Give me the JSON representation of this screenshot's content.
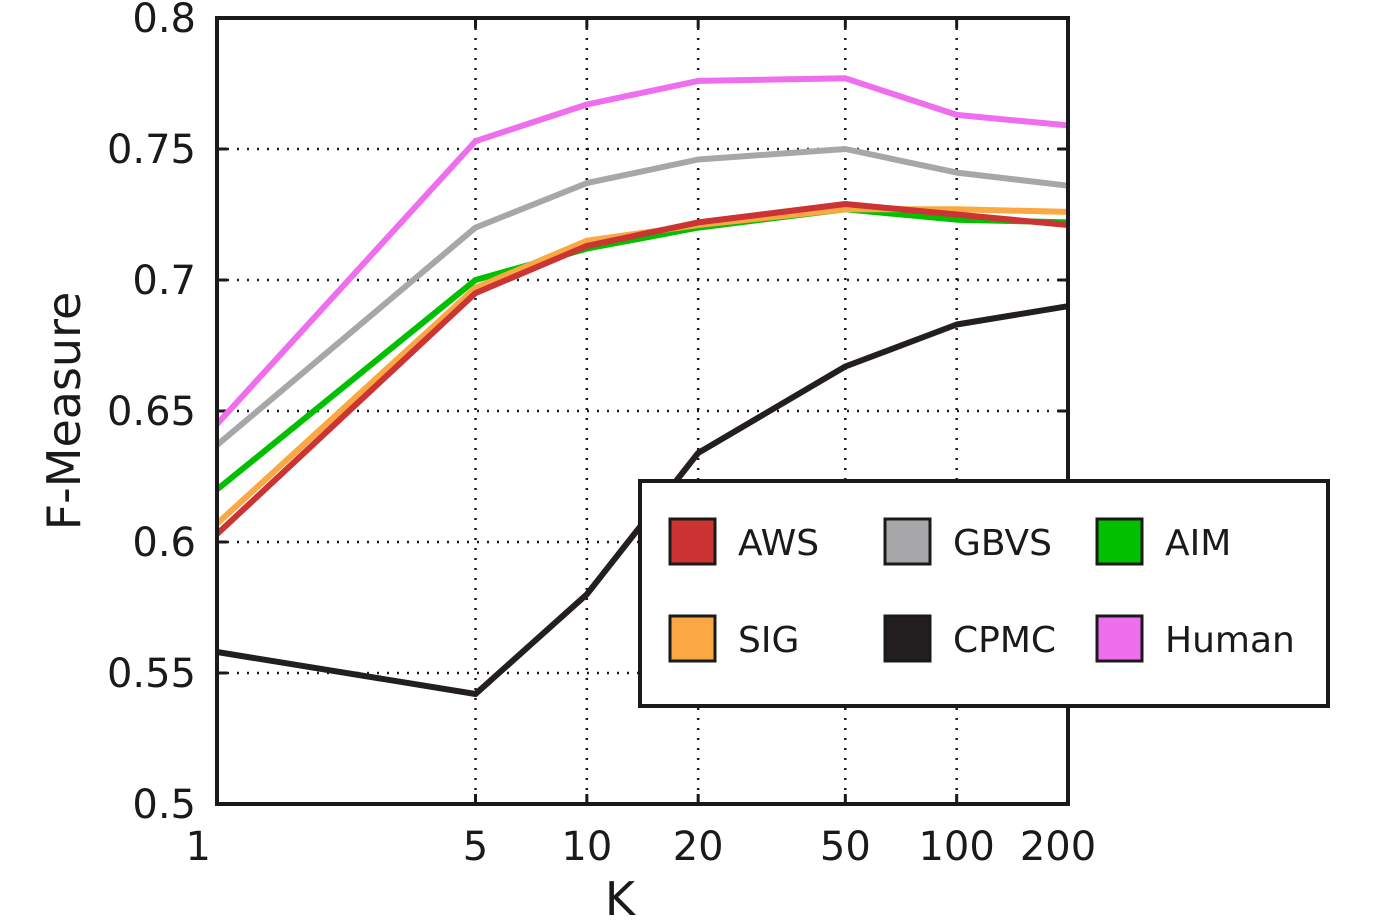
{
  "chart_data": {
    "type": "line",
    "xlabel": "K",
    "ylabel": "F-Measure",
    "x_scale": "log",
    "x": [
      1,
      5,
      10,
      20,
      50,
      100,
      200
    ],
    "xticks": [
      "1",
      "5",
      "10",
      "20",
      "50",
      "100",
      "200"
    ],
    "ylim": [
      0.5,
      0.8
    ],
    "yticks": [
      "0.5",
      "0.55",
      "0.6",
      "0.65",
      "0.7",
      "0.75",
      "0.8"
    ],
    "grid": true,
    "legend_position": "lower-right",
    "series": [
      {
        "name": "AWS",
        "color": "#cc3333",
        "values": [
          0.603,
          0.695,
          0.713,
          0.722,
          0.729,
          0.725,
          0.721
        ]
      },
      {
        "name": "GBVS",
        "color": "#a7a7a9",
        "values": [
          0.637,
          0.72,
          0.737,
          0.746,
          0.75,
          0.741,
          0.736
        ]
      },
      {
        "name": "AIM",
        "color": "#00c000",
        "values": [
          0.62,
          0.7,
          0.712,
          0.72,
          0.727,
          0.723,
          0.722
        ]
      },
      {
        "name": "SIG",
        "color": "#f9a843",
        "values": [
          0.607,
          0.697,
          0.715,
          0.721,
          0.727,
          0.727,
          0.726
        ]
      },
      {
        "name": "CPMC",
        "color": "#231f20",
        "values": [
          0.558,
          0.542,
          0.58,
          0.634,
          0.667,
          0.683,
          0.69
        ]
      },
      {
        "name": "Human",
        "color": "#ee6eee",
        "values": [
          0.645,
          0.753,
          0.767,
          0.776,
          0.777,
          0.763,
          0.759
        ]
      }
    ]
  }
}
